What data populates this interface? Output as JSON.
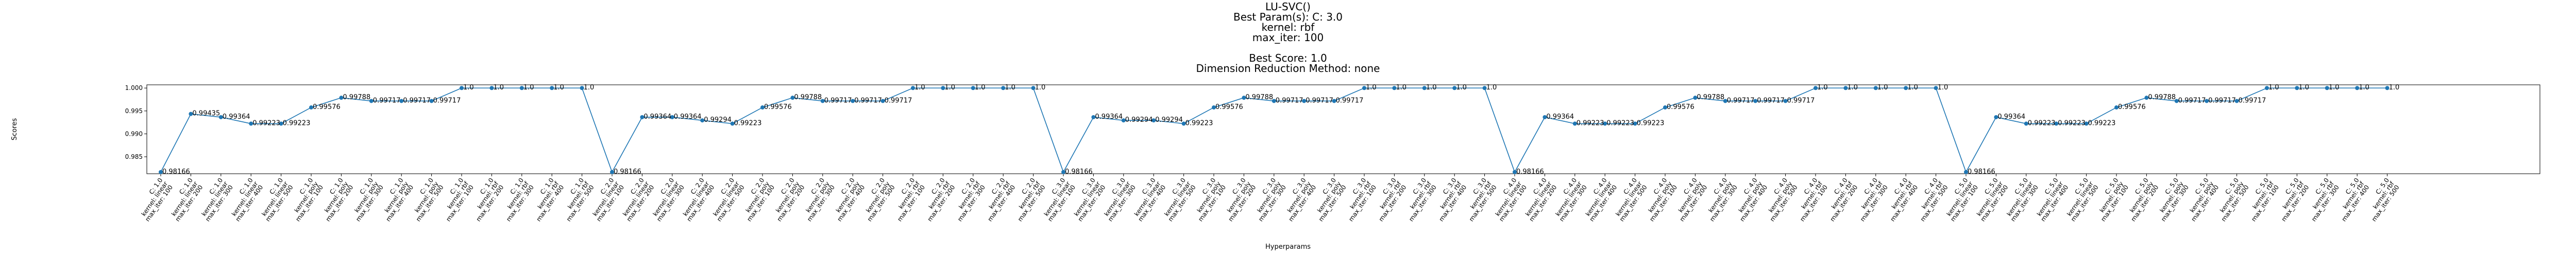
{
  "chart_data": {
    "type": "line",
    "title_lines": [
      "LU-SVC()",
      "Best Param(s): C: 3.0",
      "kernel: rbf",
      "max_iter: 100",
      "",
      "Best Score: 1.0",
      "Dimension Reduction Method: none"
    ],
    "xlabel": "Hyperparams",
    "ylabel": "Scores",
    "ylim": [
      0.9813,
      1.0007
    ],
    "yticks": [
      0.985,
      0.99,
      0.995,
      1.0
    ],
    "ytick_labels": [
      "0.985",
      "0.990",
      "0.995",
      "1.000"
    ],
    "line_color": "#1f77b4",
    "grid": false,
    "categories": [
      "C: 1.0\nkernel: linear\nmax_iter: 100",
      "C: 1.0\nkernel: linear\nmax_iter: 200",
      "C: 1.0\nkernel: linear\nmax_iter: 300",
      "C: 1.0\nkernel: linear\nmax_iter: 400",
      "C: 1.0\nkernel: linear\nmax_iter: 500",
      "C: 1.0\nkernel: poly\nmax_iter: 100",
      "C: 1.0\nkernel: poly\nmax_iter: 200",
      "C: 1.0\nkernel: poly\nmax_iter: 300",
      "C: 1.0\nkernel: poly\nmax_iter: 400",
      "C: 1.0\nkernel: poly\nmax_iter: 500",
      "C: 1.0\nkernel: rbf\nmax_iter: 100",
      "C: 1.0\nkernel: rbf\nmax_iter: 200",
      "C: 1.0\nkernel: rbf\nmax_iter: 300",
      "C: 1.0\nkernel: rbf\nmax_iter: 400",
      "C: 1.0\nkernel: rbf\nmax_iter: 500",
      "C: 2.0\nkernel: linear\nmax_iter: 100",
      "C: 2.0\nkernel: linear\nmax_iter: 200",
      "C: 2.0\nkernel: linear\nmax_iter: 300",
      "C: 2.0\nkernel: linear\nmax_iter: 400",
      "C: 2.0\nkernel: linear\nmax_iter: 500",
      "C: 2.0\nkernel: poly\nmax_iter: 100",
      "C: 2.0\nkernel: poly\nmax_iter: 200",
      "C: 2.0\nkernel: poly\nmax_iter: 300",
      "C: 2.0\nkernel: poly\nmax_iter: 400",
      "C: 2.0\nkernel: poly\nmax_iter: 500",
      "C: 2.0\nkernel: rbf\nmax_iter: 100",
      "C: 2.0\nkernel: rbf\nmax_iter: 200",
      "C: 2.0\nkernel: rbf\nmax_iter: 300",
      "C: 2.0\nkernel: rbf\nmax_iter: 400",
      "C: 2.0\nkernel: rbf\nmax_iter: 500",
      "C: 3.0\nkernel: linear\nmax_iter: 100",
      "C: 3.0\nkernel: linear\nmax_iter: 200",
      "C: 3.0\nkernel: linear\nmax_iter: 300",
      "C: 3.0\nkernel: linear\nmax_iter: 400",
      "C: 3.0\nkernel: linear\nmax_iter: 500",
      "C: 3.0\nkernel: poly\nmax_iter: 100",
      "C: 3.0\nkernel: poly\nmax_iter: 200",
      "C: 3.0\nkernel: poly\nmax_iter: 300",
      "C: 3.0\nkernel: poly\nmax_iter: 400",
      "C: 3.0\nkernel: poly\nmax_iter: 500",
      "C: 3.0\nkernel: rbf\nmax_iter: 100",
      "C: 3.0\nkernel: rbf\nmax_iter: 200",
      "C: 3.0\nkernel: rbf\nmax_iter: 300",
      "C: 3.0\nkernel: rbf\nmax_iter: 400",
      "C: 3.0\nkernel: rbf\nmax_iter: 500",
      "C: 4.0\nkernel: linear\nmax_iter: 100",
      "C: 4.0\nkernel: linear\nmax_iter: 200",
      "C: 4.0\nkernel: linear\nmax_iter: 300",
      "C: 4.0\nkernel: linear\nmax_iter: 400",
      "C: 4.0\nkernel: linear\nmax_iter: 500",
      "C: 4.0\nkernel: poly\nmax_iter: 100",
      "C: 4.0\nkernel: poly\nmax_iter: 200",
      "C: 4.0\nkernel: poly\nmax_iter: 300",
      "C: 4.0\nkernel: poly\nmax_iter: 400",
      "C: 4.0\nkernel: poly\nmax_iter: 500",
      "C: 4.0\nkernel: rbf\nmax_iter: 100",
      "C: 4.0\nkernel: rbf\nmax_iter: 200",
      "C: 4.0\nkernel: rbf\nmax_iter: 300",
      "C: 4.0\nkernel: rbf\nmax_iter: 400",
      "C: 4.0\nkernel: rbf\nmax_iter: 500",
      "C: 5.0\nkernel: linear\nmax_iter: 100",
      "C: 5.0\nkernel: linear\nmax_iter: 200",
      "C: 5.0\nkernel: linear\nmax_iter: 300",
      "C: 5.0\nkernel: linear\nmax_iter: 400",
      "C: 5.0\nkernel: linear\nmax_iter: 500",
      "C: 5.0\nkernel: poly\nmax_iter: 100",
      "C: 5.0\nkernel: poly\nmax_iter: 200",
      "C: 5.0\nkernel: poly\nmax_iter: 300",
      "C: 5.0\nkernel: poly\nmax_iter: 400",
      "C: 5.0\nkernel: poly\nmax_iter: 500",
      "C: 5.0\nkernel: rbf\nmax_iter: 100",
      "C: 5.0\nkernel: rbf\nmax_iter: 200",
      "C: 5.0\nkernel: rbf\nmax_iter: 300",
      "C: 5.0\nkernel: rbf\nmax_iter: 400",
      "C: 5.0\nkernel: rbf\nmax_iter: 500"
    ],
    "values": [
      0.98166,
      0.99435,
      0.99364,
      0.99223,
      0.99223,
      0.99576,
      0.99788,
      0.99717,
      0.99717,
      0.99717,
      1.0,
      1.0,
      1.0,
      1.0,
      1.0,
      0.98166,
      0.99364,
      0.99364,
      0.99294,
      0.99223,
      0.99576,
      0.99788,
      0.99717,
      0.99717,
      0.99717,
      1.0,
      1.0,
      1.0,
      1.0,
      1.0,
      0.98166,
      0.99364,
      0.99294,
      0.99294,
      0.99223,
      0.99576,
      0.99788,
      0.99717,
      0.99717,
      0.99717,
      1.0,
      1.0,
      1.0,
      1.0,
      1.0,
      0.98166,
      0.99364,
      0.99223,
      0.99223,
      0.99223,
      0.99576,
      0.99788,
      0.99717,
      0.99717,
      0.99717,
      1.0,
      1.0,
      1.0,
      1.0,
      1.0,
      0.98166,
      0.99364,
      0.99223,
      0.99223,
      0.99223,
      0.99576,
      0.99788,
      0.99717,
      0.99717,
      0.99717,
      1.0,
      1.0,
      1.0,
      1.0,
      1.0
    ],
    "data_labels": [
      "0.98166",
      "0.99435",
      "0.99364",
      "0.99223",
      "0.99223",
      "0.99576",
      "0.99788",
      "0.99717",
      "0.99717",
      "0.99717",
      "1.0",
      "1.0",
      "1.0",
      "1.0",
      "1.0",
      "0.98166",
      "0.99364",
      "0.99364",
      "0.99294",
      "0.99223",
      "0.99576",
      "0.99788",
      "0.99717",
      "0.99717",
      "0.99717",
      "1.0",
      "1.0",
      "1.0",
      "1.0",
      "1.0",
      "0.98166",
      "0.99364",
      "0.99294",
      "0.99294",
      "0.99223",
      "0.99576",
      "0.99788",
      "0.99717",
      "0.99717",
      "0.99717",
      "1.0",
      "1.0",
      "1.0",
      "1.0",
      "1.0",
      "0.98166",
      "0.99364",
      "0.99223",
      "0.99223",
      "0.99223",
      "0.99576",
      "0.99788",
      "0.99717",
      "0.99717",
      "0.99717",
      "1.0",
      "1.0",
      "1.0",
      "1.0",
      "1.0",
      "0.98166",
      "0.99364",
      "0.99223",
      "0.99223",
      "0.99223",
      "0.99576",
      "0.99788",
      "0.99717",
      "0.99717",
      "0.99717",
      "1.0",
      "1.0",
      "1.0",
      "1.0",
      "1.0"
    ]
  }
}
